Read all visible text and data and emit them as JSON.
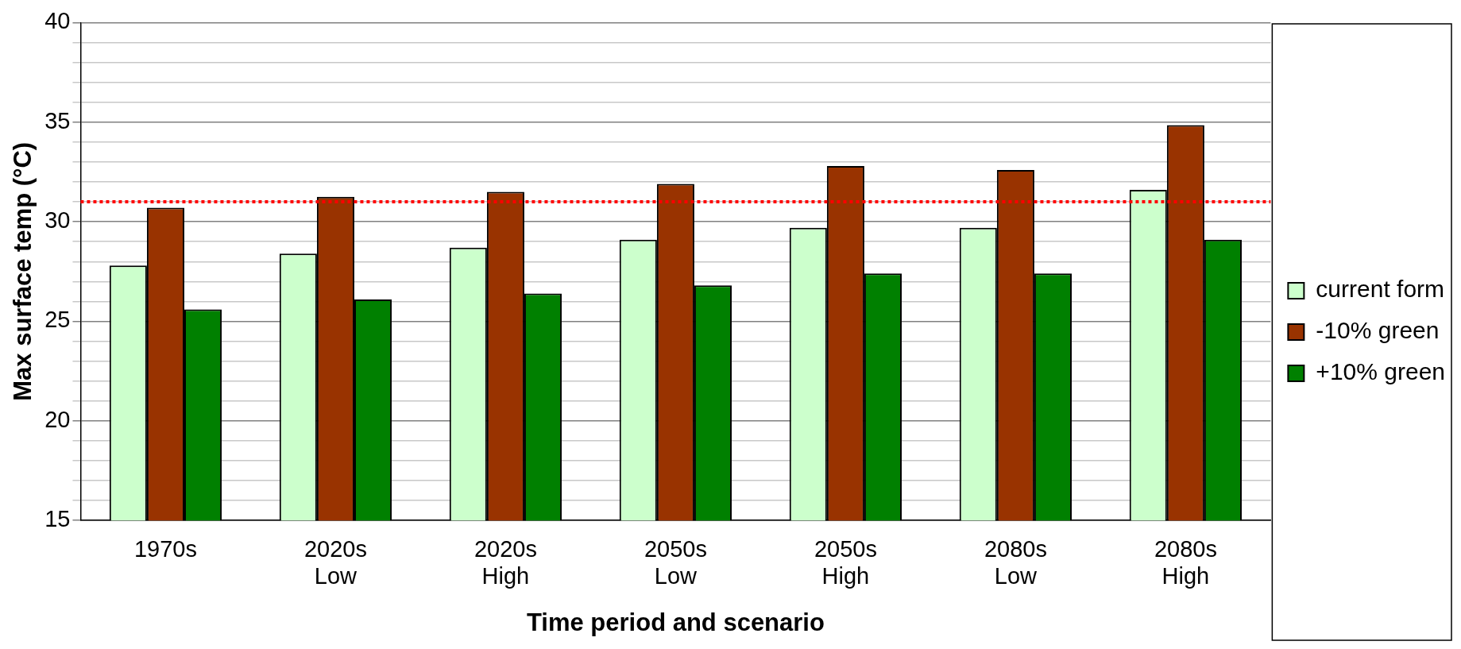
{
  "chart_data": {
    "type": "bar",
    "xlabel": "Time period and scenario",
    "ylabel": "Max surface temp (°C)",
    "categories": [
      "1970s",
      "2020s Low",
      "2020s High",
      "2050s Low",
      "2050s High",
      "2080s Low",
      "2080s High"
    ],
    "series": [
      {
        "name": "current form",
        "color": "#ccffcc",
        "values": [
          27.8,
          28.4,
          28.7,
          29.1,
          29.7,
          29.7,
          31.6
        ]
      },
      {
        "name": "-10% green",
        "color": "#993300",
        "values": [
          30.7,
          31.25,
          31.5,
          31.9,
          32.8,
          32.6,
          34.85
        ]
      },
      {
        "name": "+10% green",
        "color": "#008000",
        "values": [
          25.6,
          26.1,
          26.4,
          26.8,
          27.4,
          27.4,
          29.1
        ]
      }
    ],
    "ylim": [
      15,
      40
    ],
    "yticks": [
      15,
      {
        "value": 16,
        "label": null
      },
      {
        "value": 17,
        "label": null
      },
      {
        "value": 18,
        "label": null
      },
      {
        "value": 19,
        "label": null
      },
      20,
      {
        "value": 21,
        "label": null
      },
      {
        "value": 22,
        "label": null
      },
      {
        "value": 23,
        "label": null
      },
      {
        "value": 24,
        "label": null
      },
      25,
      {
        "value": 26,
        "label": null
      },
      {
        "value": 27,
        "label": null
      },
      {
        "value": 28,
        "label": null
      },
      {
        "value": 29,
        "label": null
      },
      30,
      {
        "value": 31,
        "label": null
      },
      {
        "value": 32,
        "label": null
      },
      {
        "value": 33,
        "label": null
      },
      {
        "value": 34,
        "label": null
      },
      35,
      {
        "value": 36,
        "label": null
      },
      {
        "value": 37,
        "label": null
      },
      {
        "value": 38,
        "label": null
      },
      {
        "value": 39,
        "label": null
      },
      40
    ],
    "ref_lines": [
      {
        "axis": "y",
        "value": 31,
        "color": "#ff0000",
        "line_style": "dotted"
      }
    ],
    "grid": "y",
    "legend": "right"
  }
}
